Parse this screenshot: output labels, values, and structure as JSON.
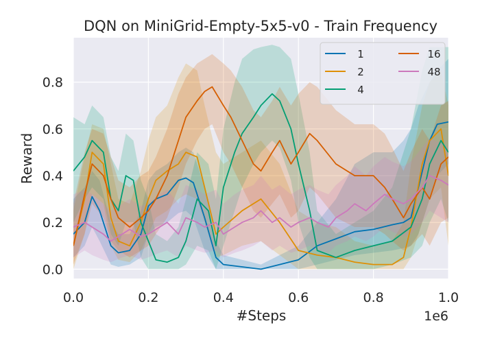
{
  "chart_data": {
    "type": "line",
    "title": "DQN on MiniGrid-Empty-5x5-v0 - Train Frequency",
    "xlabel": "#Steps",
    "ylabel": "Reward",
    "x_scale_label": "1e6",
    "xlim": [
      0,
      1.0
    ],
    "ylim": [
      -0.04,
      0.99
    ],
    "xticks": [
      0.0,
      0.2,
      0.4,
      0.6,
      0.8,
      1.0
    ],
    "xtick_labels": [
      "0.0",
      "0.2",
      "0.4",
      "0.6",
      "0.8",
      "1.0"
    ],
    "yticks": [
      0.0,
      0.2,
      0.4,
      0.6,
      0.8
    ],
    "ytick_labels": [
      "0.0",
      "0.2",
      "0.4",
      "0.6",
      "0.8"
    ],
    "grid": true,
    "legend_position": "top-right",
    "legend_columns": 2,
    "background": "#eaeaf2",
    "series": [
      {
        "name": "1",
        "color": "#0173b2",
        "x": [
          0.0,
          0.03,
          0.05,
          0.07,
          0.1,
          0.12,
          0.15,
          0.18,
          0.2,
          0.22,
          0.25,
          0.28,
          0.3,
          0.32,
          0.35,
          0.38,
          0.4,
          0.45,
          0.5,
          0.55,
          0.6,
          0.65,
          0.7,
          0.75,
          0.8,
          0.85,
          0.88,
          0.9,
          0.92,
          0.95,
          0.97,
          1.0
        ],
        "values": [
          0.15,
          0.2,
          0.31,
          0.25,
          0.1,
          0.07,
          0.08,
          0.15,
          0.27,
          0.3,
          0.32,
          0.38,
          0.39,
          0.37,
          0.22,
          0.05,
          0.02,
          0.01,
          0.0,
          0.02,
          0.04,
          0.1,
          0.13,
          0.16,
          0.17,
          0.19,
          0.2,
          0.22,
          0.35,
          0.55,
          0.62,
          0.63
        ],
        "lower": [
          0.05,
          0.1,
          0.18,
          0.12,
          0.02,
          0.01,
          0.02,
          0.05,
          0.15,
          0.18,
          0.2,
          0.24,
          0.25,
          0.22,
          0.08,
          0.0,
          0.0,
          0.0,
          0.0,
          0.0,
          0.0,
          0.02,
          0.04,
          0.06,
          0.07,
          0.08,
          0.09,
          0.1,
          0.15,
          0.3,
          0.4,
          0.45
        ],
        "upper": [
          0.3,
          0.35,
          0.42,
          0.38,
          0.2,
          0.15,
          0.15,
          0.25,
          0.38,
          0.42,
          0.45,
          0.5,
          0.52,
          0.5,
          0.35,
          0.12,
          0.06,
          0.04,
          0.02,
          0.06,
          0.1,
          0.2,
          0.3,
          0.45,
          0.5,
          0.5,
          0.55,
          0.6,
          0.7,
          0.8,
          0.85,
          0.9
        ]
      },
      {
        "name": "2",
        "color": "#de8f05",
        "x": [
          0.0,
          0.03,
          0.05,
          0.08,
          0.1,
          0.12,
          0.15,
          0.18,
          0.2,
          0.22,
          0.25,
          0.28,
          0.3,
          0.33,
          0.35,
          0.38,
          0.4,
          0.45,
          0.5,
          0.55,
          0.6,
          0.65,
          0.7,
          0.75,
          0.8,
          0.85,
          0.88,
          0.9,
          0.93,
          0.95,
          0.98,
          1.0
        ],
        "values": [
          0.1,
          0.3,
          0.5,
          0.45,
          0.22,
          0.12,
          0.1,
          0.2,
          0.3,
          0.38,
          0.42,
          0.45,
          0.5,
          0.48,
          0.35,
          0.15,
          0.18,
          0.25,
          0.3,
          0.2,
          0.08,
          0.06,
          0.05,
          0.03,
          0.02,
          0.02,
          0.05,
          0.18,
          0.45,
          0.55,
          0.6,
          0.4
        ],
        "lower": [
          0.0,
          0.15,
          0.32,
          0.28,
          0.1,
          0.04,
          0.03,
          0.08,
          0.15,
          0.22,
          0.25,
          0.3,
          0.32,
          0.3,
          0.2,
          0.05,
          0.06,
          0.1,
          0.12,
          0.06,
          0.0,
          0.0,
          0.0,
          0.0,
          0.0,
          0.0,
          0.0,
          0.05,
          0.2,
          0.3,
          0.35,
          0.1
        ],
        "upper": [
          0.25,
          0.48,
          0.62,
          0.6,
          0.45,
          0.3,
          0.28,
          0.42,
          0.55,
          0.65,
          0.7,
          0.82,
          0.88,
          0.85,
          0.7,
          0.5,
          0.45,
          0.5,
          0.55,
          0.45,
          0.25,
          0.2,
          0.18,
          0.12,
          0.1,
          0.12,
          0.2,
          0.45,
          0.7,
          0.8,
          0.85,
          0.7
        ]
      },
      {
        "name": "4",
        "color": "#029e73",
        "x": [
          0.0,
          0.03,
          0.05,
          0.08,
          0.1,
          0.12,
          0.14,
          0.16,
          0.18,
          0.2,
          0.22,
          0.25,
          0.28,
          0.3,
          0.33,
          0.36,
          0.38,
          0.4,
          0.43,
          0.45,
          0.48,
          0.5,
          0.53,
          0.55,
          0.58,
          0.6,
          0.63,
          0.65,
          0.7,
          0.75,
          0.8,
          0.85,
          0.9,
          0.93,
          0.95,
          0.98,
          1.0
        ],
        "values": [
          0.42,
          0.48,
          0.55,
          0.5,
          0.3,
          0.25,
          0.4,
          0.38,
          0.2,
          0.12,
          0.04,
          0.03,
          0.05,
          0.12,
          0.3,
          0.25,
          0.1,
          0.35,
          0.5,
          0.58,
          0.65,
          0.7,
          0.75,
          0.72,
          0.6,
          0.45,
          0.25,
          0.08,
          0.05,
          0.08,
          0.1,
          0.12,
          0.18,
          0.3,
          0.45,
          0.55,
          0.5
        ],
        "lower": [
          0.2,
          0.3,
          0.35,
          0.3,
          0.15,
          0.1,
          0.2,
          0.2,
          0.05,
          0.0,
          0.0,
          0.0,
          0.0,
          0.02,
          0.1,
          0.08,
          0.0,
          0.1,
          0.25,
          0.35,
          0.45,
          0.5,
          0.55,
          0.52,
          0.38,
          0.2,
          0.05,
          0.0,
          0.0,
          0.0,
          0.0,
          0.02,
          0.05,
          0.1,
          0.2,
          0.3,
          0.2
        ],
        "upper": [
          0.65,
          0.62,
          0.7,
          0.65,
          0.48,
          0.42,
          0.58,
          0.55,
          0.38,
          0.3,
          0.15,
          0.12,
          0.18,
          0.3,
          0.5,
          0.45,
          0.3,
          0.6,
          0.8,
          0.9,
          0.94,
          0.95,
          0.96,
          0.95,
          0.9,
          0.75,
          0.5,
          0.25,
          0.15,
          0.2,
          0.25,
          0.35,
          0.6,
          0.85,
          0.95,
          0.95,
          0.95
        ]
      },
      {
        "name": "16",
        "color": "#d55e00",
        "x": [
          0.0,
          0.03,
          0.05,
          0.08,
          0.1,
          0.12,
          0.15,
          0.18,
          0.2,
          0.22,
          0.25,
          0.28,
          0.3,
          0.33,
          0.35,
          0.37,
          0.4,
          0.42,
          0.45,
          0.48,
          0.5,
          0.53,
          0.55,
          0.58,
          0.6,
          0.63,
          0.65,
          0.7,
          0.75,
          0.8,
          0.83,
          0.85,
          0.88,
          0.9,
          0.93,
          0.95,
          0.98,
          1.0
        ],
        "values": [
          0.1,
          0.32,
          0.45,
          0.4,
          0.3,
          0.22,
          0.18,
          0.22,
          0.25,
          0.3,
          0.4,
          0.55,
          0.65,
          0.72,
          0.76,
          0.78,
          0.7,
          0.65,
          0.55,
          0.45,
          0.42,
          0.5,
          0.55,
          0.45,
          0.5,
          0.58,
          0.55,
          0.45,
          0.4,
          0.4,
          0.35,
          0.3,
          0.22,
          0.28,
          0.35,
          0.3,
          0.45,
          0.48
        ],
        "lower": [
          0.02,
          0.15,
          0.28,
          0.22,
          0.12,
          0.08,
          0.05,
          0.08,
          0.1,
          0.15,
          0.22,
          0.35,
          0.45,
          0.55,
          0.6,
          0.62,
          0.5,
          0.45,
          0.35,
          0.25,
          0.22,
          0.28,
          0.32,
          0.22,
          0.25,
          0.35,
          0.32,
          0.22,
          0.18,
          0.18,
          0.15,
          0.12,
          0.08,
          0.1,
          0.15,
          0.1,
          0.2,
          0.22
        ],
        "upper": [
          0.28,
          0.5,
          0.6,
          0.58,
          0.48,
          0.38,
          0.35,
          0.4,
          0.42,
          0.48,
          0.6,
          0.75,
          0.82,
          0.88,
          0.9,
          0.92,
          0.88,
          0.85,
          0.78,
          0.68,
          0.65,
          0.72,
          0.78,
          0.7,
          0.75,
          0.8,
          0.78,
          0.68,
          0.62,
          0.62,
          0.58,
          0.52,
          0.42,
          0.5,
          0.6,
          0.55,
          0.7,
          0.72
        ]
      },
      {
        "name": "48",
        "color": "#cc78bc",
        "x": [
          0.0,
          0.03,
          0.05,
          0.08,
          0.1,
          0.13,
          0.15,
          0.18,
          0.2,
          0.23,
          0.25,
          0.28,
          0.3,
          0.33,
          0.35,
          0.38,
          0.4,
          0.43,
          0.45,
          0.48,
          0.5,
          0.53,
          0.55,
          0.58,
          0.6,
          0.63,
          0.65,
          0.68,
          0.7,
          0.73,
          0.75,
          0.78,
          0.8,
          0.83,
          0.85,
          0.88,
          0.9,
          0.93,
          0.95,
          0.98,
          1.0
        ],
        "values": [
          0.18,
          0.2,
          0.18,
          0.15,
          0.12,
          0.15,
          0.17,
          0.14,
          0.15,
          0.18,
          0.2,
          0.15,
          0.22,
          0.2,
          0.18,
          0.2,
          0.15,
          0.18,
          0.2,
          0.22,
          0.25,
          0.2,
          0.22,
          0.18,
          0.2,
          0.22,
          0.2,
          0.18,
          0.22,
          0.25,
          0.28,
          0.25,
          0.28,
          0.32,
          0.3,
          0.28,
          0.3,
          0.35,
          0.4,
          0.38,
          0.36
        ],
        "lower": [
          0.05,
          0.08,
          0.06,
          0.04,
          0.03,
          0.05,
          0.06,
          0.04,
          0.05,
          0.07,
          0.08,
          0.05,
          0.1,
          0.08,
          0.07,
          0.08,
          0.05,
          0.07,
          0.08,
          0.1,
          0.12,
          0.08,
          0.1,
          0.07,
          0.08,
          0.1,
          0.08,
          0.07,
          0.1,
          0.12,
          0.14,
          0.12,
          0.14,
          0.18,
          0.16,
          0.14,
          0.15,
          0.2,
          0.25,
          0.22,
          0.2
        ],
        "upper": [
          0.32,
          0.34,
          0.32,
          0.28,
          0.25,
          0.28,
          0.3,
          0.27,
          0.28,
          0.32,
          0.34,
          0.28,
          0.36,
          0.34,
          0.32,
          0.34,
          0.28,
          0.32,
          0.34,
          0.36,
          0.4,
          0.34,
          0.36,
          0.32,
          0.34,
          0.36,
          0.34,
          0.32,
          0.36,
          0.4,
          0.44,
          0.4,
          0.44,
          0.48,
          0.46,
          0.44,
          0.46,
          0.52,
          0.56,
          0.54,
          0.52
        ]
      }
    ]
  }
}
